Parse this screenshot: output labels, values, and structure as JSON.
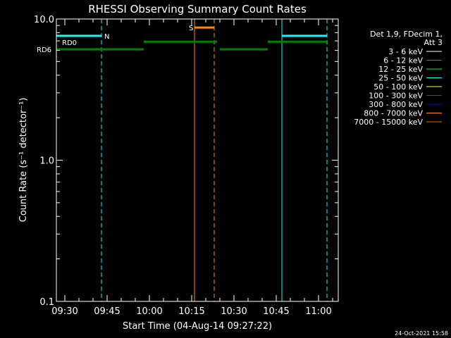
{
  "chart_data": {
    "type": "line",
    "title": "RHESSI Observing Summary Count Rates",
    "xlabel": "Start Time (04-Aug-14 09:27:22)",
    "ylabel": "Count Rate (s⁻¹ detector⁻¹)",
    "yscale": "log",
    "ylim": [
      0.1,
      10.0
    ],
    "xlim": [
      "09:27",
      "11:07"
    ],
    "y_ticks": [
      {
        "value": 0.1,
        "label": "0.1"
      },
      {
        "value": 1.0,
        "label": "1.0"
      },
      {
        "value": 10.0,
        "label": "10.0"
      }
    ],
    "x_ticks": [
      {
        "value": "09:30",
        "label": "09:30"
      },
      {
        "value": "09:45",
        "label": "09:45"
      },
      {
        "value": "10:00",
        "label": "10:00"
      },
      {
        "value": "10:15",
        "label": "10:15"
      },
      {
        "value": "10:30",
        "label": "10:30"
      },
      {
        "value": "10:45",
        "label": "10:45"
      },
      {
        "value": "11:00",
        "label": "11:00"
      }
    ],
    "legend": {
      "placement": "right",
      "header": [
        "Det 1,9, FDecim 1,",
        "Att 3"
      ],
      "entries": [
        {
          "label": "3 - 6 keV",
          "color": "#000000"
        },
        {
          "label": "6 - 12 keV",
          "color": "#ff00ff"
        },
        {
          "label": "12 - 25 keV",
          "color": "#00ff00"
        },
        {
          "label": "25 - 50 keV",
          "color": "#00ffff"
        },
        {
          "label": "50 - 100 keV",
          "color": "#ffff00"
        },
        {
          "label": "100 - 300 keV",
          "color": "#ff0000"
        },
        {
          "label": "300 - 800 keV",
          "color": "#0000ff"
        },
        {
          "label": "800 - 7000 keV",
          "color": "#ff8c00"
        },
        {
          "label": "7000 - 15000 keV",
          "color": "#c87800"
        }
      ]
    },
    "segments": [
      {
        "name": "night",
        "color": "#00ffff",
        "value": 7.6,
        "x0": "09:27",
        "x1": "09:43"
      },
      {
        "name": "night",
        "color": "#00ffff",
        "value": 7.6,
        "x0": "10:47",
        "x1": "11:03"
      },
      {
        "name": "saa",
        "color": "#ff8c00",
        "value": 8.7,
        "x0": "10:16",
        "x1": "10:23"
      },
      {
        "name": "decimation",
        "color": "#008000",
        "value": 6.1,
        "x0": "09:27",
        "x1": "09:58"
      },
      {
        "name": "decimation",
        "color": "#008000",
        "value": 6.9,
        "x0": "09:58",
        "x1": "10:24"
      },
      {
        "name": "decimation",
        "color": "#008000",
        "value": 6.1,
        "x0": "10:25",
        "x1": "10:42"
      },
      {
        "name": "decimation",
        "color": "#008000",
        "value": 6.9,
        "x0": "10:42",
        "x1": "11:03"
      }
    ],
    "vlines": [
      {
        "x": "09:27",
        "color": "#00ffff",
        "style": "solid"
      },
      {
        "x": "09:43",
        "color": "#00ffff",
        "style": "dashed"
      },
      {
        "x": "10:47",
        "color": "#00ffff",
        "style": "solid"
      },
      {
        "x": "11:03",
        "color": "#00ffff",
        "style": "dashed"
      },
      {
        "x": "10:16",
        "color": "#ff8c00",
        "style": "solid"
      },
      {
        "x": "10:23",
        "color": "#ff8c00",
        "style": "dashed"
      }
    ],
    "annotations": [
      {
        "text": "N",
        "color": "#00ffff",
        "x": "09:44",
        "value": 7.6
      },
      {
        "text": "S",
        "color": "#ff8c00",
        "x": "10:14",
        "value": 8.7
      },
      {
        "text": "RD0",
        "color": "#008000",
        "x": "09:29",
        "value": 6.85
      },
      {
        "text": "RD6",
        "color": "#008000",
        "x": "09:20",
        "value": 6.1
      }
    ]
  },
  "footer": {
    "timestamp": "24-Oct-2021 15:58"
  }
}
